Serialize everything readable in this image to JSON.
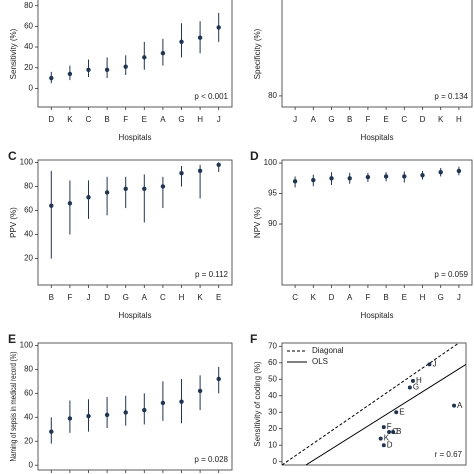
{
  "chart_data": [
    {
      "type": "errorbar",
      "label": "A",
      "ylabel": "Sensitivity (%)",
      "xlabel": "Hospitals",
      "categories": [
        "D",
        "K",
        "C",
        "B",
        "F",
        "E",
        "A",
        "G",
        "H",
        "J"
      ],
      "values": [
        10,
        14,
        18,
        18,
        21,
        30,
        34,
        45,
        49,
        59
      ],
      "lower": [
        5,
        8,
        11,
        10,
        13,
        18,
        22,
        30,
        34,
        45
      ],
      "upper": [
        16,
        22,
        28,
        30,
        32,
        45,
        48,
        63,
        65,
        73
      ],
      "ylim": [
        -18,
        100
      ],
      "yticks": [
        0,
        20,
        40,
        60,
        80
      ],
      "annotation": "p < 0.001",
      "color": "#1f3552"
    },
    {
      "type": "errorbar",
      "label": "B",
      "ylabel": "Specificity (%)",
      "xlabel": "Hospitals",
      "categories": [
        "J",
        "A",
        "G",
        "B",
        "F",
        "E",
        "C",
        "D",
        "K",
        "H"
      ],
      "ylim": [
        78,
        100
      ],
      "yticks": [
        80
      ],
      "annotation": "p = 0.134",
      "color": "#1f3552"
    },
    {
      "type": "errorbar",
      "label": "C",
      "ylabel": "PPV (%)",
      "xlabel": "Hospitals",
      "categories": [
        "B",
        "F",
        "J",
        "D",
        "G",
        "A",
        "C",
        "H",
        "K",
        "E"
      ],
      "values": [
        64,
        66,
        71,
        75,
        78,
        78,
        80,
        91,
        93,
        98
      ],
      "lower": [
        20,
        40,
        53,
        56,
        62,
        50,
        62,
        80,
        70,
        92
      ],
      "upper": [
        93,
        85,
        85,
        88,
        88,
        90,
        88,
        97,
        98,
        100
      ],
      "ylim": [
        -2,
        102
      ],
      "yticks": [
        20,
        40,
        60,
        80,
        100
      ],
      "annotation": "p = 0.112",
      "color": "#1f3552"
    },
    {
      "type": "errorbar",
      "label": "D",
      "ylabel": "NPV (%)",
      "xlabel": "Hospitals",
      "categories": [
        "C",
        "K",
        "D",
        "A",
        "F",
        "B",
        "E",
        "H",
        "G",
        "J"
      ],
      "values": [
        97,
        97.2,
        97.5,
        97.5,
        97.7,
        97.8,
        97.8,
        98,
        98.5,
        98.7
      ],
      "lower": [
        96,
        96.2,
        96.4,
        96.6,
        96.9,
        97,
        96.8,
        97.3,
        97.8,
        98
      ],
      "upper": [
        97.8,
        98.1,
        98.5,
        98.4,
        98.4,
        98.5,
        98.6,
        98.7,
        99.2,
        99.4
      ],
      "ylim": [
        80,
        100.5
      ],
      "yticks": [
        90,
        95,
        100
      ],
      "annotation": "p = 0.059",
      "color": "#1f3552"
    },
    {
      "type": "errorbar",
      "label": "E",
      "ylabel": "Naming of sepsis in medical record (%)",
      "categories": [
        "",
        "",
        "",
        "",
        "",
        "",
        "",
        "",
        "",
        ""
      ],
      "values": [
        28,
        39,
        41,
        42,
        44,
        46,
        52,
        53,
        62,
        72
      ],
      "lower": [
        18,
        27,
        28,
        31,
        33,
        34,
        37,
        35,
        46,
        60
      ],
      "upper": [
        40,
        54,
        55,
        57,
        58,
        60,
        70,
        72,
        75,
        82
      ],
      "ylim": [
        -4,
        102
      ],
      "yticks": [
        0,
        20,
        40,
        60,
        80,
        100
      ],
      "annotation": "p = 0.028",
      "color": "#1f3552"
    },
    {
      "type": "scatter",
      "label": "F",
      "ylabel": "Sensitivity of coding (%)",
      "points": [
        "J",
        "H",
        "G",
        "E",
        "A",
        "F",
        "B",
        "C",
        "K",
        "D"
      ],
      "x": [
        59.7,
        52.8,
        51.5,
        45.8,
        70,
        40.6,
        44.5,
        42.8,
        39.3,
        40.6
      ],
      "y": [
        59,
        49,
        45,
        30,
        34,
        21,
        18,
        18,
        14,
        10
      ],
      "xlim": [
        -2,
        75
      ],
      "ylim": [
        -2,
        72
      ],
      "yticks": [
        0,
        10,
        20,
        30,
        40,
        50,
        60,
        70
      ],
      "diagonal": {
        "name": "Diagonal",
        "x": [
          -2,
          72
        ],
        "y": [
          -2,
          72
        ]
      },
      "ols": {
        "name": "OLS",
        "x": [
          8,
          75
        ],
        "y": [
          -2,
          59
        ]
      },
      "annotation": "r = 0.67",
      "color": "#1f3552"
    }
  ]
}
